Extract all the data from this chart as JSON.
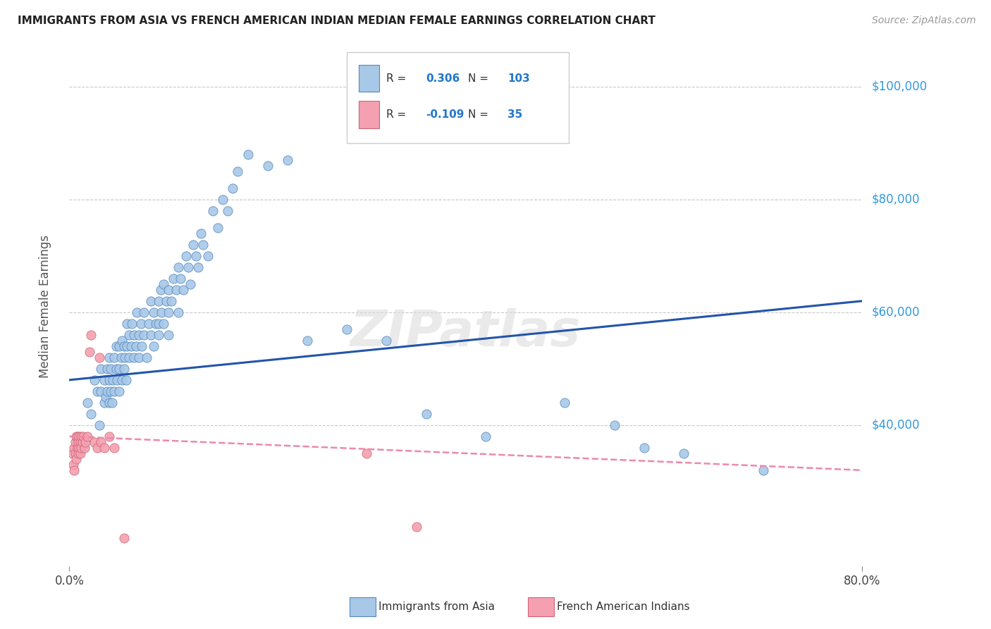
{
  "title": "IMMIGRANTS FROM ASIA VS FRENCH AMERICAN INDIAN MEDIAN FEMALE EARNINGS CORRELATION CHART",
  "source": "Source: ZipAtlas.com",
  "ylabel": "Median Female Earnings",
  "xlim": [
    0.0,
    0.8
  ],
  "ylim": [
    15000,
    107000
  ],
  "ytick_vals": [
    40000,
    60000,
    80000,
    100000
  ],
  "xticks": [
    0.0,
    0.8
  ],
  "xtick_labels": [
    "0.0%",
    "80.0%"
  ],
  "blue_R": 0.306,
  "blue_N": 103,
  "pink_R": -0.109,
  "pink_N": 35,
  "blue_color": "#A8C8E8",
  "blue_edge": "#5588BB",
  "pink_color": "#F4A0B0",
  "pink_edge": "#CC6677",
  "line_blue_color": "#2255AA",
  "line_pink_color": "#EE88AA",
  "legend1_label": "Immigrants from Asia",
  "legend2_label": "French American Indians",
  "watermark": "ZIPatlas",
  "blue_line_y0": 48000,
  "blue_line_y1": 62000,
  "pink_line_y0": 38000,
  "pink_line_y1": 32000,
  "blue_scatter_x": [
    0.018,
    0.022,
    0.025,
    0.028,
    0.03,
    0.032,
    0.032,
    0.035,
    0.035,
    0.037,
    0.038,
    0.038,
    0.04,
    0.04,
    0.04,
    0.042,
    0.042,
    0.043,
    0.044,
    0.045,
    0.045,
    0.047,
    0.047,
    0.048,
    0.05,
    0.05,
    0.05,
    0.052,
    0.053,
    0.053,
    0.055,
    0.055,
    0.056,
    0.057,
    0.058,
    0.058,
    0.06,
    0.06,
    0.062,
    0.063,
    0.065,
    0.065,
    0.067,
    0.068,
    0.07,
    0.07,
    0.072,
    0.073,
    0.075,
    0.075,
    0.078,
    0.08,
    0.082,
    0.082,
    0.085,
    0.085,
    0.087,
    0.09,
    0.09,
    0.09,
    0.092,
    0.093,
    0.095,
    0.095,
    0.098,
    0.1,
    0.1,
    0.1,
    0.103,
    0.105,
    0.108,
    0.11,
    0.11,
    0.112,
    0.115,
    0.118,
    0.12,
    0.122,
    0.125,
    0.128,
    0.13,
    0.133,
    0.135,
    0.14,
    0.145,
    0.15,
    0.155,
    0.16,
    0.165,
    0.17,
    0.18,
    0.2,
    0.22,
    0.24,
    0.28,
    0.32,
    0.36,
    0.42,
    0.5,
    0.55,
    0.58,
    0.62,
    0.7
  ],
  "blue_scatter_y": [
    44000,
    42000,
    48000,
    46000,
    40000,
    46000,
    50000,
    44000,
    48000,
    45000,
    50000,
    46000,
    44000,
    48000,
    52000,
    46000,
    50000,
    44000,
    48000,
    52000,
    46000,
    50000,
    54000,
    48000,
    46000,
    50000,
    54000,
    52000,
    48000,
    55000,
    50000,
    54000,
    52000,
    48000,
    54000,
    58000,
    52000,
    56000,
    54000,
    58000,
    52000,
    56000,
    54000,
    60000,
    56000,
    52000,
    58000,
    54000,
    56000,
    60000,
    52000,
    58000,
    56000,
    62000,
    60000,
    54000,
    58000,
    56000,
    62000,
    58000,
    64000,
    60000,
    58000,
    65000,
    62000,
    60000,
    56000,
    64000,
    62000,
    66000,
    64000,
    60000,
    68000,
    66000,
    64000,
    70000,
    68000,
    65000,
    72000,
    70000,
    68000,
    74000,
    72000,
    70000,
    78000,
    75000,
    80000,
    78000,
    82000,
    85000,
    88000,
    86000,
    87000,
    55000,
    57000,
    55000,
    42000,
    38000,
    44000,
    40000,
    36000,
    35000,
    32000
  ],
  "pink_scatter_x": [
    0.003,
    0.004,
    0.005,
    0.005,
    0.006,
    0.006,
    0.007,
    0.007,
    0.008,
    0.008,
    0.009,
    0.009,
    0.01,
    0.01,
    0.011,
    0.011,
    0.012,
    0.012,
    0.013,
    0.014,
    0.015,
    0.016,
    0.018,
    0.02,
    0.022,
    0.025,
    0.028,
    0.03,
    0.032,
    0.035,
    0.04,
    0.045,
    0.055,
    0.3,
    0.35
  ],
  "pink_scatter_y": [
    35000,
    33000,
    36000,
    32000,
    37000,
    35000,
    38000,
    34000,
    36000,
    38000,
    35000,
    37000,
    38000,
    36000,
    37000,
    35000,
    38000,
    36000,
    37000,
    38000,
    36000,
    37000,
    38000,
    53000,
    56000,
    37000,
    36000,
    52000,
    37000,
    36000,
    38000,
    36000,
    20000,
    35000,
    22000
  ]
}
